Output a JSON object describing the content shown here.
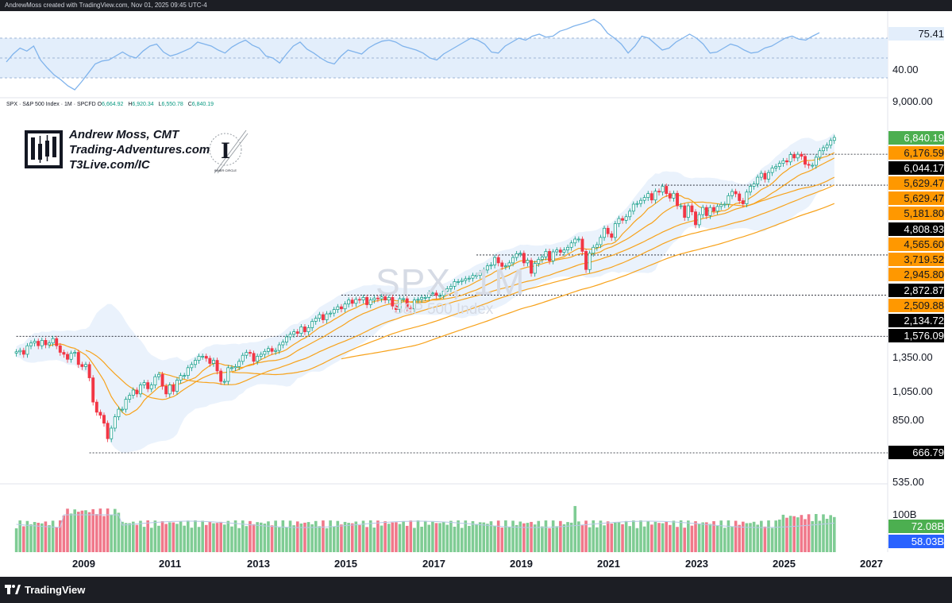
{
  "credit": "AndrewMoss created with TradingView.com, Nov 01, 2025 09:45 UTC-4",
  "footer": {
    "brand": "TradingView"
  },
  "legend": {
    "symbol": "SPX · S&P 500 Index · 1M · SPCFD",
    "open_label": "O",
    "open": "6,664.92",
    "high_label": "H",
    "high": "6,920.34",
    "low_label": "L",
    "low": "6,550.78",
    "close_label": "C",
    "close": "6,840.19"
  },
  "brand": {
    "line1": "Andrew Moss, CMT",
    "line2": "Trading-Adventures.com",
    "line3": "T3Live.com/IC",
    "seal_letter": "I",
    "seal_text": "INNER CIRCLE"
  },
  "watermark": {
    "title": "SPX, 1M",
    "subtitle": "S&P 500 Index"
  },
  "colors": {
    "up": "#089981",
    "down": "#f23645",
    "ma": "#f7a21b",
    "band": "#e3eefb",
    "rsi": "#7fb3ec",
    "badge_green": "#4caf50",
    "badge_orange": "#ff9800",
    "badge_black": "#000000",
    "badge_blue": "#2962ff",
    "vol_up": "#7fcc94",
    "vol_down": "#f0788a"
  },
  "rsi_panel": {
    "current_label": "75.41",
    "axis_labels": [
      "40.00"
    ],
    "values": [
      46,
      54,
      60,
      57,
      62,
      48,
      40,
      33,
      28,
      22,
      18,
      26,
      35,
      44,
      47,
      48,
      52,
      56,
      52,
      50,
      57,
      62,
      64,
      56,
      52,
      54,
      57,
      60,
      66,
      64,
      62,
      58,
      55,
      61,
      65,
      68,
      63,
      60,
      52,
      50,
      45,
      54,
      62,
      66,
      59,
      55,
      50,
      46,
      44,
      52,
      58,
      56,
      54,
      60,
      64,
      67,
      68,
      66,
      62,
      60,
      58,
      55,
      50,
      48,
      54,
      58,
      62,
      66,
      70,
      68,
      64,
      56,
      55,
      62,
      66,
      70,
      68,
      72,
      74,
      71,
      72,
      77,
      79,
      82,
      84,
      86,
      89,
      84,
      75,
      70,
      64,
      55,
      62,
      72,
      70,
      64,
      58,
      60,
      66,
      70,
      74,
      70,
      64,
      55,
      56,
      60,
      64,
      62,
      58,
      55,
      56,
      60,
      62,
      66,
      70,
      72,
      69,
      68,
      72,
      75.41
    ]
  },
  "volume_panel": {
    "axis_label": "100B",
    "current_labels": [
      "72.08B",
      "58.03B"
    ]
  },
  "badges": [
    {
      "label": "6,840.19",
      "type": "green"
    },
    {
      "label": "6,176.59",
      "type": "orange"
    },
    {
      "label": "6,044.17",
      "type": "black"
    },
    {
      "label": "5,629.47",
      "type": "orange"
    },
    {
      "label": "5,629.47",
      "type": "orange"
    },
    {
      "label": "5,181.80",
      "type": "orange"
    },
    {
      "label": "4,808.93",
      "type": "black"
    },
    {
      "label": "4,565.60",
      "type": "orange"
    },
    {
      "label": "3,719.52",
      "type": "orange"
    },
    {
      "label": "2,945.80",
      "type": "orange"
    },
    {
      "label": "2,872.87",
      "type": "black"
    },
    {
      "label": "2,509.88",
      "type": "orange"
    },
    {
      "label": "2,134.72",
      "type": "black"
    },
    {
      "label": "1,576.09",
      "type": "black"
    },
    {
      "label": "666.79",
      "type": "black"
    }
  ],
  "price_axis_labels": [
    "9,000.00",
    "1,350.00",
    "1,050.00",
    "850.00",
    "535.00"
  ],
  "chart_data": {
    "type": "candlestick",
    "symbol": "SPX",
    "interval": "1M",
    "scale": "log",
    "x_axis_years": [
      "2009",
      "2011",
      "2013",
      "2015",
      "2017",
      "2019",
      "2021",
      "2023",
      "2025",
      "2027"
    ],
    "horizontal_levels": [
      6044.17,
      4808.93,
      2872.87,
      2134.72,
      1576.09,
      666.79
    ],
    "moving_average_labels": [
      6176.59,
      5629.47,
      5181.8,
      4565.6,
      3719.52,
      2945.8,
      2509.88
    ],
    "monthly_closes": [
      1406,
      1420,
      1380,
      1470,
      1500,
      1520,
      1470,
      1530,
      1480,
      1500,
      1550,
      1470,
      1400,
      1380,
      1330,
      1390,
      1400,
      1280,
      1260,
      1280,
      1160,
      970,
      900,
      880,
      830,
      740,
      800,
      870,
      920,
      920,
      990,
      1020,
      1060,
      1030,
      1100,
      1120,
      1070,
      1100,
      1170,
      1190,
      1090,
      1030,
      1100,
      1050,
      1140,
      1180,
      1180,
      1250,
      1280,
      1320,
      1360,
      1360,
      1340,
      1290,
      1320,
      1220,
      1130,
      1130,
      1250,
      1250,
      1260,
      1310,
      1370,
      1400,
      1390,
      1310,
      1360,
      1380,
      1410,
      1440,
      1410,
      1420,
      1480,
      1510,
      1570,
      1600,
      1630,
      1610,
      1690,
      1630,
      1680,
      1760,
      1800,
      1850,
      1780,
      1860,
      1870,
      1920,
      1960,
      1930,
      2000,
      2060,
      2010,
      2070,
      2060,
      2100,
      1990,
      2060,
      2090,
      2080,
      2110,
      2060,
      2100,
      1970,
      1920,
      2080,
      2080,
      1940,
      1930,
      2060,
      2070,
      2100,
      2100,
      2170,
      2170,
      2130,
      2130,
      2200,
      2240,
      2280,
      2360,
      2360,
      2380,
      2410,
      2420,
      2470,
      2470,
      2520,
      2570,
      2650,
      2670,
      2820,
      2710,
      2640,
      2650,
      2710,
      2820,
      2900,
      2910,
      2710,
      2760,
      2510,
      2700,
      2780,
      2830,
      2950,
      2750,
      2940,
      2980,
      2930,
      2980,
      3040,
      3140,
      3230,
      3230,
      2950,
      2580,
      2910,
      3040,
      3100,
      3270,
      3500,
      3360,
      3270,
      3620,
      3760,
      3710,
      3810,
      3970,
      4180,
      4200,
      4300,
      4390,
      4520,
      4310,
      4600,
      4570,
      4770,
      4520,
      4370,
      4530,
      4130,
      4130,
      3790,
      4130,
      3950,
      3590,
      3870,
      4080,
      3840,
      4080,
      3970,
      4110,
      4170,
      4180,
      4450,
      4590,
      4510,
      4290,
      4190,
      4570,
      4770,
      4850,
      5100,
      5250,
      5030,
      5280,
      5460,
      5520,
      5650,
      5760,
      5710,
      6030,
      5880,
      6040,
      5950,
      5610,
      5570,
      5570,
      5910,
      6200,
      6340,
      6460,
      6690,
      6840.19
    ]
  }
}
